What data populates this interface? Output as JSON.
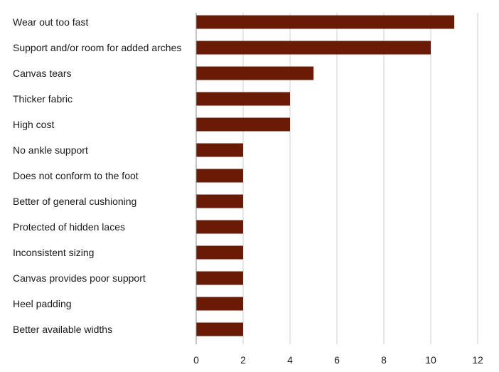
{
  "colors": {
    "bar": "#6b1a06",
    "grid": "#cfcfcf"
  },
  "chart_data": {
    "type": "bar",
    "orientation": "horizontal",
    "title": "",
    "xlabel": "",
    "ylabel": "",
    "categories": [
      "Wear out too fast",
      "Support and/or room for added arches",
      "Canvas tears",
      "Thicker fabric",
      "High cost",
      "No ankle support",
      "Does not conform to the foot",
      "Better of general cushioning",
      "Protected of hidden laces",
      "Inconsistent sizing",
      "Canvas provides poor support",
      "Heel padding",
      "Better available widths"
    ],
    "values": [
      11,
      10,
      5,
      4,
      4,
      2,
      2,
      2,
      2,
      2,
      2,
      2,
      2
    ],
    "xlim": [
      0,
      12
    ],
    "xticks": [
      0,
      2,
      4,
      6,
      8,
      10,
      12
    ],
    "grid": "vertical",
    "legend": "none"
  }
}
